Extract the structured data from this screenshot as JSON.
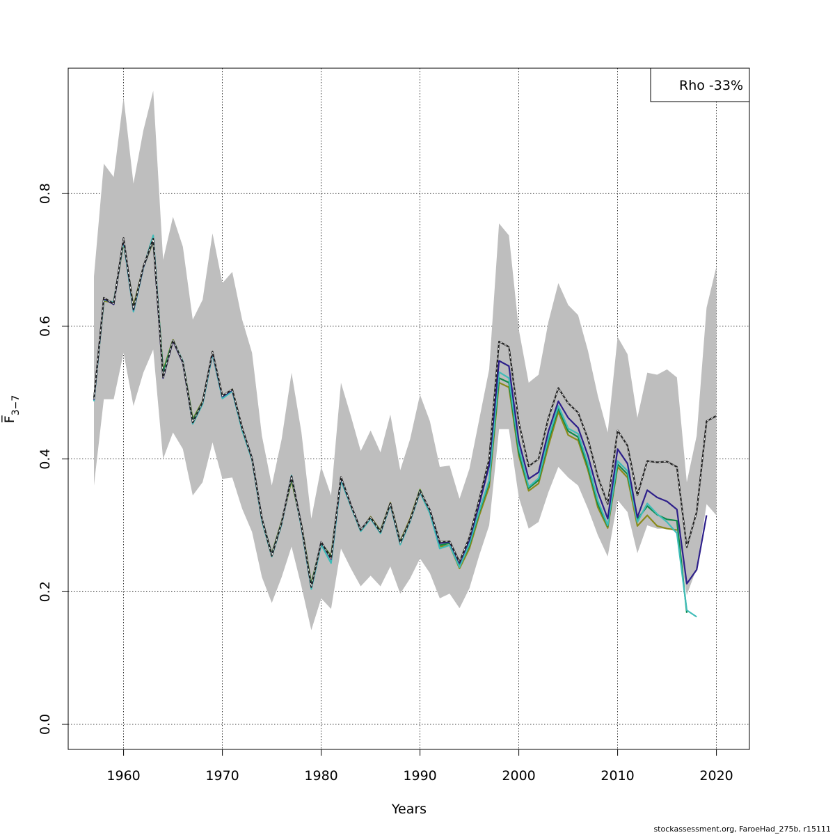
{
  "chart_data": {
    "type": "line",
    "title": "",
    "xlabel": "Years",
    "ylabel": "F̅",
    "ylabel_sub": "3−7",
    "xlim": [
      1957,
      2020
    ],
    "ylim": [
      0,
      0.95
    ],
    "x_ticks": [
      1960,
      1970,
      1980,
      1990,
      2000,
      2010,
      2020
    ],
    "y_ticks": [
      0.0,
      0.2,
      0.4,
      0.6,
      0.8
    ],
    "y_tick_labels": [
      "0.0",
      "0.2",
      "0.4",
      "0.6",
      "0.8"
    ],
    "grid": true,
    "legend": {
      "text": "Rho -33%",
      "placement": "top-right"
    },
    "band": {
      "color": "#bebebe",
      "x": [
        1957,
        1958,
        1959,
        1960,
        1961,
        1962,
        1963,
        1964,
        1965,
        1966,
        1967,
        1968,
        1969,
        1970,
        1971,
        1972,
        1973,
        1974,
        1975,
        1976,
        1977,
        1978,
        1979,
        1980,
        1981,
        1982,
        1983,
        1984,
        1985,
        1986,
        1987,
        1988,
        1989,
        1990,
        1991,
        1992,
        1993,
        1994,
        1995,
        1996,
        1997,
        1998,
        1999,
        2000,
        2001,
        2002,
        2003,
        2004,
        2005,
        2006,
        2007,
        2008,
        2009,
        2010,
        2011,
        2012,
        2013,
        2014,
        2015,
        2016,
        2017,
        2018,
        2019,
        2020
      ],
      "lower": [
        0.36,
        0.49,
        0.49,
        0.56,
        0.48,
        0.53,
        0.565,
        0.4,
        0.44,
        0.415,
        0.345,
        0.365,
        0.425,
        0.37,
        0.372,
        0.325,
        0.29,
        0.222,
        0.183,
        0.222,
        0.268,
        0.208,
        0.142,
        0.19,
        0.174,
        0.265,
        0.235,
        0.208,
        0.224,
        0.208,
        0.238,
        0.197,
        0.22,
        0.25,
        0.228,
        0.19,
        0.197,
        0.175,
        0.205,
        0.255,
        0.3,
        0.445,
        0.445,
        0.342,
        0.295,
        0.305,
        0.35,
        0.388,
        0.372,
        0.36,
        0.325,
        0.285,
        0.253,
        0.338,
        0.32,
        0.258,
        0.3,
        0.295,
        0.295,
        0.29,
        0.195,
        0.235,
        0.332,
        0.315
      ],
      "upper": [
        0.675,
        0.845,
        0.825,
        0.945,
        0.815,
        0.895,
        0.955,
        0.7,
        0.765,
        0.72,
        0.61,
        0.64,
        0.74,
        0.665,
        0.682,
        0.61,
        0.56,
        0.435,
        0.36,
        0.43,
        0.53,
        0.44,
        0.31,
        0.388,
        0.345,
        0.515,
        0.465,
        0.412,
        0.443,
        0.41,
        0.467,
        0.383,
        0.43,
        0.497,
        0.457,
        0.388,
        0.39,
        0.34,
        0.385,
        0.46,
        0.535,
        0.755,
        0.737,
        0.595,
        0.515,
        0.527,
        0.607,
        0.665,
        0.632,
        0.617,
        0.563,
        0.495,
        0.44,
        0.584,
        0.558,
        0.462,
        0.53,
        0.527,
        0.535,
        0.523,
        0.365,
        0.435,
        0.628,
        0.69
      ]
    },
    "series": [
      {
        "color": "#222222",
        "dashed": true,
        "x": [
          1957,
          1958,
          1959,
          1960,
          1961,
          1962,
          1963,
          1964,
          1965,
          1966,
          1967,
          1968,
          1969,
          1970,
          1971,
          1972,
          1973,
          1974,
          1975,
          1976,
          1977,
          1978,
          1979,
          1980,
          1981,
          1982,
          1983,
          1984,
          1985,
          1986,
          1987,
          1988,
          1989,
          1990,
          1991,
          1992,
          1993,
          1994,
          1995,
          1996,
          1997,
          1998,
          1999,
          2000,
          2001,
          2002,
          2003,
          2004,
          2005,
          2006,
          2007,
          2008,
          2009,
          2010,
          2011,
          2012,
          2013,
          2014,
          2015,
          2016,
          2017,
          2018,
          2019,
          2020
        ],
        "values": [
          0.49,
          0.643,
          0.634,
          0.733,
          0.626,
          0.69,
          0.732,
          0.523,
          0.579,
          0.546,
          0.455,
          0.486,
          0.562,
          0.495,
          0.505,
          0.447,
          0.401,
          0.31,
          0.254,
          0.304,
          0.374,
          0.3,
          0.207,
          0.275,
          0.25,
          0.373,
          0.331,
          0.293,
          0.312,
          0.29,
          0.333,
          0.274,
          0.308,
          0.352,
          0.323,
          0.275,
          0.276,
          0.245,
          0.282,
          0.339,
          0.4,
          0.577,
          0.569,
          0.455,
          0.389,
          0.4,
          0.462,
          0.507,
          0.484,
          0.47,
          0.43,
          0.373,
          0.332,
          0.443,
          0.42,
          0.345,
          0.397,
          0.395,
          0.396,
          0.388,
          0.267,
          0.32,
          0.457,
          0.465
        ]
      },
      {
        "color": "#2d1f8a",
        "dashed": false,
        "x": [
          1957,
          1958,
          1959,
          1960,
          1961,
          1962,
          1963,
          1964,
          1965,
          1966,
          1967,
          1968,
          1969,
          1970,
          1971,
          1972,
          1973,
          1974,
          1975,
          1976,
          1977,
          1978,
          1979,
          1980,
          1981,
          1982,
          1983,
          1984,
          1985,
          1986,
          1987,
          1988,
          1989,
          1990,
          1991,
          1992,
          1993,
          1994,
          1995,
          1996,
          1997,
          1998,
          1999,
          2000,
          2001,
          2002,
          2003,
          2004,
          2005,
          2006,
          2007,
          2008,
          2009,
          2010,
          2011,
          2012,
          2013,
          2014,
          2015,
          2016,
          2017,
          2018,
          2019
        ],
        "values": [
          0.489,
          0.642,
          0.633,
          0.732,
          0.625,
          0.689,
          0.731,
          0.522,
          0.578,
          0.545,
          0.455,
          0.486,
          0.561,
          0.494,
          0.504,
          0.447,
          0.401,
          0.31,
          0.255,
          0.304,
          0.374,
          0.3,
          0.207,
          0.275,
          0.249,
          0.372,
          0.331,
          0.293,
          0.312,
          0.29,
          0.333,
          0.274,
          0.308,
          0.352,
          0.323,
          0.273,
          0.275,
          0.243,
          0.278,
          0.332,
          0.39,
          0.548,
          0.54,
          0.427,
          0.37,
          0.38,
          0.442,
          0.487,
          0.462,
          0.447,
          0.405,
          0.35,
          0.31,
          0.415,
          0.393,
          0.312,
          0.353,
          0.342,
          0.336,
          0.324,
          0.212,
          0.233,
          0.315
        ]
      },
      {
        "color": "#3fbcb8",
        "dashed": false,
        "x": [
          1957,
          1958,
          1959,
          1960,
          1961,
          1962,
          1963,
          1964,
          1965,
          1966,
          1967,
          1968,
          1969,
          1970,
          1971,
          1972,
          1973,
          1974,
          1975,
          1976,
          1977,
          1978,
          1979,
          1980,
          1981,
          1982,
          1983,
          1984,
          1985,
          1986,
          1987,
          1988,
          1989,
          1990,
          1991,
          1992,
          1993,
          1994,
          1995,
          1996,
          1997,
          1998,
          1999,
          2000,
          2001,
          2002,
          2003,
          2004,
          2005,
          2006,
          2007,
          2008,
          2009,
          2010,
          2011,
          2012,
          2013,
          2014,
          2015,
          2016,
          2017,
          2018
        ],
        "values": [
          0.487,
          0.64,
          0.636,
          0.728,
          0.622,
          0.688,
          0.737,
          0.525,
          0.579,
          0.547,
          0.453,
          0.483,
          0.558,
          0.491,
          0.502,
          0.443,
          0.399,
          0.307,
          0.253,
          0.302,
          0.375,
          0.297,
          0.204,
          0.271,
          0.243,
          0.368,
          0.329,
          0.291,
          0.31,
          0.288,
          0.331,
          0.271,
          0.306,
          0.35,
          0.318,
          0.265,
          0.27,
          0.237,
          0.272,
          0.322,
          0.368,
          0.531,
          0.522,
          0.417,
          0.358,
          0.371,
          0.432,
          0.48,
          0.446,
          0.438,
          0.393,
          0.337,
          0.3,
          0.397,
          0.382,
          0.305,
          0.333,
          0.317,
          0.305,
          0.288,
          0.172,
          0.162
        ]
      },
      {
        "color": "#0f8a4a",
        "dashed": false,
        "x": [
          1957,
          1958,
          1959,
          1960,
          1961,
          1962,
          1963,
          1964,
          1965,
          1966,
          1967,
          1968,
          1969,
          1970,
          1971,
          1972,
          1973,
          1974,
          1975,
          1976,
          1977,
          1978,
          1979,
          1980,
          1981,
          1982,
          1983,
          1984,
          1985,
          1986,
          1987,
          1988,
          1989,
          1990,
          1991,
          1992,
          1993,
          1994,
          1995,
          1996,
          1997,
          1998,
          1999,
          2000,
          2001,
          2002,
          2003,
          2004,
          2005,
          2006,
          2007,
          2008,
          2009,
          2010,
          2011,
          2012,
          2013,
          2014,
          2015,
          2016,
          2017
        ],
        "values": [
          0.489,
          0.641,
          0.634,
          0.73,
          0.627,
          0.689,
          0.73,
          0.53,
          0.579,
          0.546,
          0.458,
          0.486,
          0.56,
          0.494,
          0.504,
          0.446,
          0.401,
          0.31,
          0.256,
          0.305,
          0.371,
          0.3,
          0.21,
          0.274,
          0.252,
          0.37,
          0.33,
          0.292,
          0.312,
          0.291,
          0.333,
          0.275,
          0.308,
          0.353,
          0.322,
          0.27,
          0.273,
          0.238,
          0.27,
          0.32,
          0.365,
          0.522,
          0.515,
          0.41,
          0.356,
          0.368,
          0.428,
          0.476,
          0.442,
          0.433,
          0.388,
          0.332,
          0.299,
          0.392,
          0.377,
          0.309,
          0.329,
          0.316,
          0.309,
          0.307,
          0.168
        ]
      },
      {
        "color": "#8a8a1a",
        "dashed": false,
        "x": [
          1957,
          1958,
          1959,
          1960,
          1961,
          1962,
          1963,
          1964,
          1965,
          1966,
          1967,
          1968,
          1969,
          1970,
          1971,
          1972,
          1973,
          1974,
          1975,
          1976,
          1977,
          1978,
          1979,
          1980,
          1981,
          1982,
          1983,
          1984,
          1985,
          1986,
          1987,
          1988,
          1989,
          1990,
          1991,
          1992,
          1993,
          1994,
          1995,
          1996,
          1997,
          1998,
          1999,
          2000,
          2001,
          2002,
          2003,
          2004,
          2005,
          2006,
          2007,
          2008,
          2009,
          2010,
          2011,
          2012,
          2013,
          2014,
          2015,
          2016
        ],
        "values": [
          0.49,
          0.638,
          0.636,
          0.726,
          0.63,
          0.689,
          0.728,
          0.533,
          0.58,
          0.546,
          0.46,
          0.487,
          0.56,
          0.495,
          0.505,
          0.447,
          0.4,
          0.31,
          0.257,
          0.306,
          0.368,
          0.301,
          0.212,
          0.273,
          0.254,
          0.368,
          0.33,
          0.292,
          0.313,
          0.292,
          0.334,
          0.276,
          0.31,
          0.354,
          0.32,
          0.268,
          0.27,
          0.235,
          0.265,
          0.315,
          0.358,
          0.515,
          0.508,
          0.405,
          0.352,
          0.363,
          0.42,
          0.471,
          0.436,
          0.428,
          0.383,
          0.327,
          0.296,
          0.388,
          0.372,
          0.299,
          0.315,
          0.299,
          0.295,
          0.293
        ]
      }
    ]
  },
  "footer": "stockassessment.org, FaroeHad_275b, r15111"
}
